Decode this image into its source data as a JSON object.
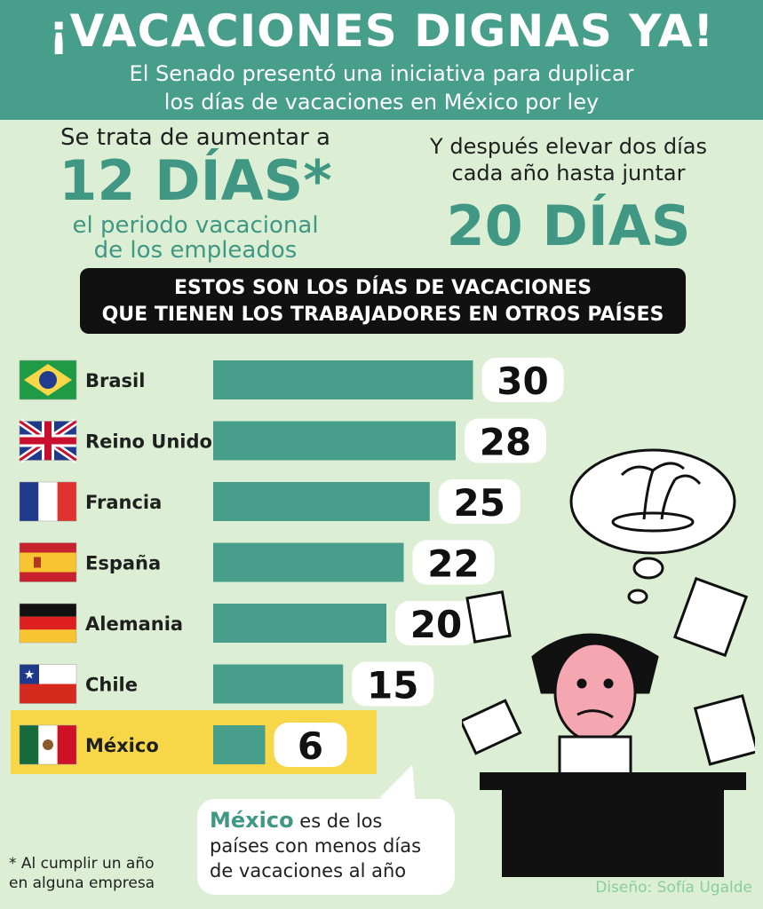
{
  "header": {
    "title": "¡VACACIONES DIGNAS YA!",
    "subtitle_line1": "El Senado presentó una iniciativa para duplicar",
    "subtitle_line2": "los días de vacaciones en México por ley"
  },
  "intro_left": {
    "line1": "Se trata de aumentar a",
    "big": "12 DÍAS*",
    "small1": "el periodo vacacional",
    "small2": "de los empleados"
  },
  "intro_right": {
    "line1": "Y después elevar dos días",
    "line2": "cada año hasta juntar",
    "big": "20 DÍAS"
  },
  "banner": {
    "line1": "ESTOS SON LOS DÍAS DE VACACIONES",
    "line2": "QUE TIENEN LOS TRABAJADORES EN OTROS PAÍSES"
  },
  "colors": {
    "header": "#479e8a",
    "bar": "#479e8a",
    "accent_text": "#3f9784",
    "highlight": "#f7d648",
    "background": "#dcefd5"
  },
  "chart_data": {
    "type": "bar",
    "orientation": "horizontal",
    "categories": [
      "Brasil",
      "Reino Unido",
      "Francia",
      "España",
      "Alemania",
      "Chile",
      "México"
    ],
    "values": [
      30,
      28,
      25,
      22,
      20,
      15,
      6
    ],
    "flags": [
      "brazil-flag",
      "uk-flag",
      "france-flag",
      "spain-flag",
      "germany-flag",
      "chile-flag",
      "mexico-flag"
    ],
    "highlighted": "México"
  },
  "bubble": {
    "highlight": "México",
    "text1": " es de los",
    "text2": "países con menos días",
    "text3": "de vacaciones al año"
  },
  "footnote": {
    "line1": "* Al cumplir un año",
    "line2": "en alguna empresa"
  },
  "credit": "Diseño: Sofía Ugalde"
}
